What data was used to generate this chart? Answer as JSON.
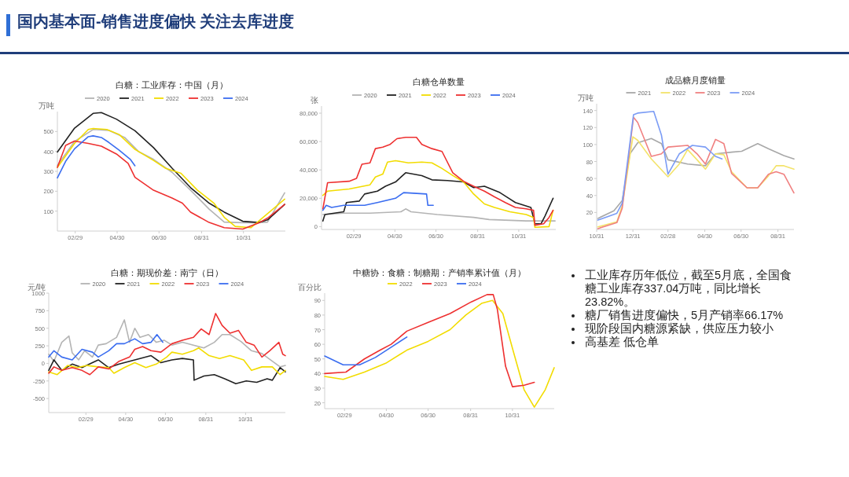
{
  "chart_data": [
    {
      "type": "line",
      "title": "白糖：工业库存：中国（月）",
      "ylabel": "万吨",
      "legend": "top",
      "xlim": [
        "--02-03",
        "--12-31"
      ],
      "ylim": [
        0,
        600
      ],
      "yticks": [
        100,
        200,
        300,
        400,
        500
      ],
      "xticks": [
        {
          "value": "--02-29",
          "label": "02/29"
        },
        {
          "value": "--04-30",
          "label": "04/30"
        },
        {
          "value": "--06-30",
          "label": "06/30"
        },
        {
          "value": "--08-31",
          "label": "08/31"
        },
        {
          "value": "--10-31",
          "label": "10/31"
        }
      ],
      "series": [
        {
          "name": "2020",
          "color": "#b4b4b4",
          "x": [
            "--02-03",
            "--02-28",
            "--03-26",
            "--04-18",
            "--05-11",
            "--05-31",
            "--06-22",
            "--07-19",
            "--08-15",
            "--09-11",
            "--10-03",
            "--10-30",
            "--11-22",
            "--12-05",
            "--12-30"
          ],
          "values": [
            330,
            450,
            510,
            505,
            470,
            400,
            360,
            295,
            205,
            110,
            45,
            42,
            42,
            45,
            192
          ]
        },
        {
          "name": "2021",
          "color": "#222222",
          "x": [
            "--02-03",
            "--02-28",
            "--03-26",
            "--04-07",
            "--04-29",
            "--05-26",
            "--06-22",
            "--07-19",
            "--08-15",
            "--09-11",
            "--10-03",
            "--10-30",
            "--11-22",
            "--12-05",
            "--12-30"
          ],
          "values": [
            397,
            517,
            591,
            595,
            562,
            504,
            419,
            316,
            218,
            140,
            95,
            49,
            43,
            56,
            134
          ]
        },
        {
          "name": "2022",
          "color": "#f2dc00",
          "x": [
            "--02-03",
            "--02-28",
            "--03-19",
            "--03-26",
            "--04-15",
            "--05-03",
            "--05-26",
            "--06-22",
            "--07-09",
            "--08-01",
            "--08-25",
            "--09-18",
            "--10-03",
            "--10-19",
            "--11-11",
            "--12-30"
          ],
          "values": [
            320,
            440,
            510,
            515,
            510,
            485,
            410,
            355,
            316,
            290,
            205,
            140,
            69,
            23,
            17,
            160
          ]
        },
        {
          "name": "2023",
          "color": "#ee3030",
          "x": [
            "--02-03",
            "--02-15",
            "--02-28",
            "--03-19",
            "--04-07",
            "--04-29",
            "--05-16",
            "--05-26",
            "--06-22",
            "--07-19",
            "--08-03",
            "--08-15",
            "--09-11",
            "--10-03",
            "--10-30",
            "--11-22",
            "--12-05",
            "--12-30"
          ],
          "values": [
            320,
            430,
            452,
            440,
            426,
            387,
            340,
            270,
            205,
            166,
            140,
            95,
            43,
            17,
            10,
            40,
            65,
            134
          ]
        },
        {
          "name": "2024",
          "color": "#3a6df0",
          "x": [
            "--02-03",
            "--02-15",
            "--02-28",
            "--03-19",
            "--03-26",
            "--04-07",
            "--04-18",
            "--05-03",
            "--05-19",
            "--05-26"
          ],
          "values": [
            267,
            350,
            413,
            474,
            478,
            470,
            445,
            406,
            361,
            328
          ]
        }
      ]
    },
    {
      "type": "line",
      "title": "白糖仓单数量",
      "ylabel": "张",
      "legend": "top",
      "xlim": [
        "--01-12",
        "--12-25"
      ],
      "ylim": [
        -2000,
        85000
      ],
      "yticks": [
        0,
        {
          "value": 20000,
          "label": "20,000"
        },
        {
          "value": 40000,
          "label": "40,000"
        },
        {
          "value": 60000,
          "label": "60,000"
        },
        {
          "value": 80000,
          "label": "80,000"
        }
      ],
      "xticks": [
        {
          "value": "--02-29",
          "label": "02/29"
        },
        {
          "value": "--04-30",
          "label": "04/30"
        },
        {
          "value": "--06-30",
          "label": "06/30"
        },
        {
          "value": "--08-31",
          "label": "08/31"
        },
        {
          "value": "--10-31",
          "label": "10/31"
        }
      ],
      "series": [
        {
          "name": "2020",
          "color": "#b4b4b4",
          "x": [
            "--01-14",
            "--02-14",
            "--03-24",
            "--05-09",
            "--05-16",
            "--05-24",
            "--07-02",
            "--08-25",
            "--09-17",
            "--11-11",
            "--12-24"
          ],
          "values": [
            8500,
            9500,
            9500,
            10500,
            12500,
            10500,
            8500,
            6500,
            5000,
            4000,
            4000
          ]
        },
        {
          "name": "2021",
          "color": "#222222",
          "x": [
            "--01-14",
            "--01-17",
            "--02-14",
            "--02-18",
            "--03-08",
            "--03-16",
            "--04-04",
            "--04-16",
            "--05-01",
            "--05-16",
            "--06-09",
            "--06-24",
            "--07-17",
            "--08-10",
            "--08-25",
            "--09-10",
            "--10-03",
            "--10-26",
            "--11-18",
            "--11-24",
            "--12-03",
            "--12-09",
            "--12-21"
          ],
          "values": [
            4000,
            8500,
            10500,
            17000,
            18000,
            23000,
            25000,
            28500,
            31500,
            38000,
            36000,
            33000,
            32500,
            31500,
            27500,
            28500,
            24000,
            17000,
            13500,
            2000,
            2000,
            7500,
            20000
          ]
        },
        {
          "name": "2022",
          "color": "#f2dc00",
          "x": [
            "--01-14",
            "--01-21",
            "--02-22",
            "--03-24",
            "--04-01",
            "--04-12",
            "--04-19",
            "--05-01",
            "--05-20",
            "--06-09",
            "--06-24",
            "--07-09",
            "--07-25",
            "--08-10",
            "--08-25",
            "--09-10",
            "--09-25",
            "--10-18",
            "--11-11",
            "--11-22",
            "--11-24",
            "--12-15",
            "--12-21"
          ],
          "values": [
            22000,
            25000,
            26500,
            29500,
            35000,
            37000,
            45500,
            46500,
            45000,
            45500,
            45000,
            41000,
            36000,
            31500,
            23000,
            16000,
            13500,
            10500,
            8500,
            6500,
            -500,
            0,
            11500
          ]
        },
        {
          "name": "2023",
          "color": "#ee3030",
          "x": [
            "--01-14",
            "--01-21",
            "--02-22",
            "--03-04",
            "--03-12",
            "--03-24",
            "--04-01",
            "--04-12",
            "--04-23",
            "--05-03",
            "--05-16",
            "--06-01",
            "--06-09",
            "--06-24",
            "--07-09",
            "--07-25",
            "--08-10",
            "--08-25",
            "--09-10",
            "--09-25",
            "--10-11",
            "--10-26",
            "--11-11",
            "--11-22",
            "--11-24",
            "--12-07",
            "--12-15",
            "--12-21"
          ],
          "values": [
            12500,
            31000,
            32000,
            34000,
            44000,
            45000,
            55000,
            56000,
            58000,
            62000,
            63000,
            63000,
            58000,
            55000,
            53000,
            38000,
            32000,
            28500,
            25000,
            21000,
            17000,
            13500,
            12500,
            11500,
            1000,
            2000,
            6500,
            11500
          ]
        },
        {
          "name": "2024",
          "color": "#3a6df0",
          "x": [
            "--01-14",
            "--01-19",
            "--01-27",
            "--02-14",
            "--03-16",
            "--04-04",
            "--05-01",
            "--05-13",
            "--06-16",
            "--06-18",
            "--06-26"
          ],
          "values": [
            11500,
            15000,
            13500,
            15000,
            15000,
            17000,
            20000,
            24000,
            23000,
            15000,
            15000
          ]
        }
      ]
    },
    {
      "type": "line",
      "title": "成品糖月度销量",
      "ylabel": "万吨",
      "legend": "top",
      "xlim": [
        "2023-10-31",
        "2024-09-27"
      ],
      "ylim": [
        0,
        148
      ],
      "yticks": [
        20,
        40,
        60,
        80,
        100,
        120,
        140
      ],
      "xticks": [
        {
          "value": "2023-10-31",
          "label": "10/31"
        },
        {
          "value": "2023-12-31",
          "label": "12/31"
        },
        {
          "value": "2024-02-28",
          "label": "02/28"
        },
        {
          "value": "2024-04-30",
          "label": "04/30"
        },
        {
          "value": "2024-06-30",
          "label": "06/30"
        },
        {
          "value": "2024-08-31",
          "label": "08/31"
        }
      ],
      "series": [
        {
          "name": "2021",
          "color": "#a8a8a8",
          "x": [
            "2023-11-02",
            "2023-11-29",
            "2023-12-13",
            "2023-12-26",
            "2024-01-08",
            "2024-01-31",
            "2024-02-17",
            "2024-02-28",
            "2024-04-01",
            "2024-05-01",
            "2024-05-18",
            "2024-06-14",
            "2024-07-01",
            "2024-07-28",
            "2024-08-15",
            "2024-09-10",
            "2024-09-27"
          ],
          "values": [
            13,
            22,
            34,
            89,
            102,
            107,
            101,
            82,
            77,
            75,
            89,
            91,
            92,
            101,
            95,
            87,
            83
          ]
        },
        {
          "name": "2022",
          "color": "#f3e36a",
          "x": [
            "2023-11-02",
            "2023-12-04",
            "2023-12-13",
            "2023-12-31",
            "2024-01-08",
            "2024-01-31",
            "2024-02-28",
            "2024-03-18",
            "2024-04-01",
            "2024-04-17",
            "2024-05-01",
            "2024-05-18",
            "2024-06-01",
            "2024-06-14",
            "2024-07-10",
            "2024-07-28",
            "2024-08-15",
            "2024-08-28",
            "2024-09-10",
            "2024-09-27"
          ],
          "values": [
            3,
            9,
            28,
            109,
            105,
            83,
            62,
            77,
            94,
            82,
            71,
            89,
            88,
            68,
            49,
            49,
            63,
            75,
            75,
            71
          ]
        },
        {
          "name": "2023",
          "color": "#f08080",
          "x": [
            "2023-11-02",
            "2023-12-04",
            "2023-12-13",
            "2024-01-01",
            "2024-01-08",
            "2024-01-31",
            "2024-02-17",
            "2024-02-28",
            "2024-04-01",
            "2024-04-17",
            "2024-05-01",
            "2024-05-18",
            "2024-06-01",
            "2024-06-14",
            "2024-07-10",
            "2024-07-28",
            "2024-08-15",
            "2024-08-28",
            "2024-09-10",
            "2024-09-27"
          ],
          "values": [
            1,
            8,
            25,
            132,
            126,
            86,
            89,
            97,
            99,
            89,
            77,
            106,
            101,
            66,
            49,
            49,
            65,
            68,
            65,
            43
          ]
        },
        {
          "name": "2024",
          "color": "#7b9cf5",
          "x": [
            "2023-11-02",
            "2023-12-04",
            "2023-12-13",
            "2024-01-01",
            "2024-01-08",
            "2024-02-04",
            "2024-02-17",
            "2024-02-28",
            "2024-03-18",
            "2024-04-09",
            "2024-05-01",
            "2024-05-18",
            "2024-05-29"
          ],
          "values": [
            11,
            19,
            31,
            135,
            137,
            139,
            111,
            65,
            89,
            99,
            97,
            86,
            83
          ]
        }
      ]
    },
    {
      "type": "line",
      "title": "白糖：期现价差：南宁（日）",
      "ylabel": "元/吨",
      "legend": "top",
      "xlim": [
        "--01-03",
        "--12-31"
      ],
      "ylim": [
        -700,
        1000
      ],
      "yticks": [
        -500,
        -250,
        0,
        250,
        500,
        750,
        1000
      ],
      "xticks": [
        {
          "value": "--02-29",
          "label": "02/29"
        },
        {
          "value": "--04-30",
          "label": "04/30"
        },
        {
          "value": "--06-30",
          "label": "06/30"
        },
        {
          "value": "--08-31",
          "label": "08/31"
        },
        {
          "value": "--10-31",
          "label": "10/31"
        }
      ],
      "series": [
        {
          "name": "2020",
          "color": "#b4b4b4",
          "x": [
            "--01-03",
            "--01-11",
            "--01-23",
            "--02-03",
            "--02-08",
            "--02-18",
            "--02-27",
            "--03-10",
            "--03-19",
            "--03-31",
            "--04-16",
            "--04-28",
            "--05-06",
            "--05-14",
            "--05-22",
            "--06-04",
            "--06-16",
            "--06-28",
            "--07-10",
            "--07-26",
            "--08-12",
            "--08-28",
            "--09-13",
            "--09-25",
            "--10-07",
            "--10-24",
            "--11-09",
            "--11-25",
            "--12-11",
            "--12-23",
            "--12-31"
          ],
          "values": [
            130,
            30,
            300,
            390,
            150,
            50,
            180,
            90,
            260,
            280,
            370,
            620,
            300,
            500,
            370,
            410,
            300,
            330,
            260,
            300,
            260,
            220,
            300,
            410,
            410,
            310,
            180,
            140,
            30,
            -50,
            -30
          ]
        },
        {
          "name": "2021",
          "color": "#222222",
          "x": [
            "--01-03",
            "--01-11",
            "--01-23",
            "--02-08",
            "--02-23",
            "--03-10",
            "--03-19",
            "--04-04",
            "--04-20",
            "--05-06",
            "--05-22",
            "--06-08",
            "--06-23",
            "--07-10",
            "--07-26",
            "--08-12",
            "--08-13",
            "--08-28",
            "--09-13",
            "--09-29",
            "--10-16",
            "--11-01",
            "--11-17",
            "--12-03",
            "--12-11",
            "--12-23",
            "--12-31"
          ],
          "values": [
            -100,
            50,
            -100,
            -10,
            -60,
            10,
            50,
            -60,
            -10,
            30,
            70,
            110,
            10,
            50,
            70,
            50,
            -240,
            -180,
            -160,
            -220,
            -290,
            -250,
            -270,
            -220,
            -240,
            -60,
            -120
          ]
        },
        {
          "name": "2022",
          "color": "#f2dc00",
          "x": [
            "--01-03",
            "--01-16",
            "--02-01",
            "--02-16",
            "--03-02",
            "--03-19",
            "--04-04",
            "--04-12",
            "--04-28",
            "--05-14",
            "--05-31",
            "--06-16",
            "--07-02",
            "--07-10",
            "--07-26",
            "--08-12",
            "--08-20",
            "--09-05",
            "--09-21",
            "--10-07",
            "--10-28",
            "--11-09",
            "--11-25",
            "--12-11",
            "--12-23",
            "--12-31"
          ],
          "values": [
            -120,
            -160,
            -30,
            -60,
            -30,
            -50,
            -60,
            -140,
            -60,
            10,
            -60,
            -10,
            90,
            160,
            130,
            180,
            220,
            110,
            70,
            110,
            50,
            -100,
            -50,
            -50,
            -160,
            -100
          ]
        },
        {
          "name": "2023",
          "color": "#ee3030",
          "x": [
            "--01-03",
            "--01-11",
            "--01-23",
            "--02-08",
            "--02-23",
            "--03-06",
            "--03-19",
            "--04-04",
            "--04-20",
            "--05-06",
            "--05-14",
            "--05-26",
            "--06-08",
            "--06-23",
            "--07-10",
            "--07-26",
            "--08-12",
            "--08-24",
            "--09-05",
            "--09-15",
            "--09-25",
            "--10-07",
            "--10-20",
            "--11-01",
            "--11-13",
            "--11-25",
            "--12-07",
            "--12-21",
            "--12-27",
            "--12-31"
          ],
          "values": [
            -140,
            -50,
            -100,
            -60,
            -100,
            -160,
            -50,
            -80,
            30,
            90,
            200,
            240,
            180,
            160,
            280,
            330,
            370,
            490,
            410,
            710,
            540,
            430,
            470,
            300,
            260,
            90,
            180,
            300,
            130,
            110
          ]
        },
        {
          "name": "2024",
          "color": "#3a6df0",
          "x": [
            "--01-03",
            "--01-11",
            "--01-23",
            "--02-08",
            "--02-23",
            "--03-10",
            "--03-19",
            "--04-04",
            "--04-16",
            "--04-28",
            "--05-14",
            "--05-26",
            "--06-08",
            "--06-17",
            "--06-26"
          ],
          "values": [
            90,
            180,
            90,
            50,
            200,
            160,
            90,
            180,
            280,
            280,
            350,
            280,
            300,
            410,
            300
          ]
        }
      ]
    },
    {
      "type": "line",
      "title": "中糖协：食糖：制糖期：产销率累计值（月）",
      "ylabel": "百分比",
      "legend": "top",
      "xlim": [
        "--01-31",
        "--12-31"
      ],
      "ylim": [
        16,
        95
      ],
      "yticks": [
        20,
        30,
        40,
        50,
        60,
        70,
        80,
        90
      ],
      "xticks": [
        {
          "value": "--02-29",
          "label": "02/29"
        },
        {
          "value": "--04-30",
          "label": "04/30"
        },
        {
          "value": "--06-30",
          "label": "06/30"
        },
        {
          "value": "--08-31",
          "label": "08/31"
        },
        {
          "value": "--10-31",
          "label": "10/31"
        }
      ],
      "series": [
        {
          "name": "2022",
          "color": "#f2dc00",
          "x": [
            "--01-31",
            "--02-27",
            "--03-29",
            "--04-29",
            "--05-30",
            "--06-30",
            "--08-01",
            "--08-24",
            "--09-16",
            "--10-02",
            "--10-17",
            "--11-02",
            "--11-17",
            "--12-02",
            "--12-18",
            "--12-31"
          ],
          "values": [
            38,
            36,
            41,
            47,
            56,
            62,
            70,
            80,
            88,
            90,
            81,
            54,
            29,
            17,
            29,
            44
          ]
        },
        {
          "name": "2023",
          "color": "#ee3030",
          "x": [
            "--01-31",
            "--03-02",
            "--03-29",
            "--04-21",
            "--05-07",
            "--05-30",
            "--06-30",
            "--08-01",
            "--09-01",
            "--09-24",
            "--10-03",
            "--10-09",
            "--10-21",
            "--10-31",
            "--11-17",
            "--12-02"
          ],
          "values": [
            40,
            41,
            50,
            56,
            60,
            69,
            75,
            81,
            89,
            94,
            94,
            84,
            45,
            31,
            32,
            34
          ]
        },
        {
          "name": "2024",
          "color": "#3a6df0",
          "x": [
            "--01-31",
            "--02-27",
            "--03-22",
            "--04-14",
            "--05-07",
            "--05-30"
          ],
          "values": [
            52,
            46,
            46,
            51,
            58,
            65
          ]
        }
      ]
    },
    {
      "type": "other",
      "title": "国内基本面-销售进度偏快  关注去库进度",
      "annotations": [
        "工业库存历年低位，截至5月底，全国食糖工业库存337.04万吨，同比增长23.82%。",
        "糖厂销售进度偏快，5月产销率66.17%",
        "现阶段国内糖源紧缺，供应压力较小",
        "高基差 低仓单"
      ]
    }
  ]
}
